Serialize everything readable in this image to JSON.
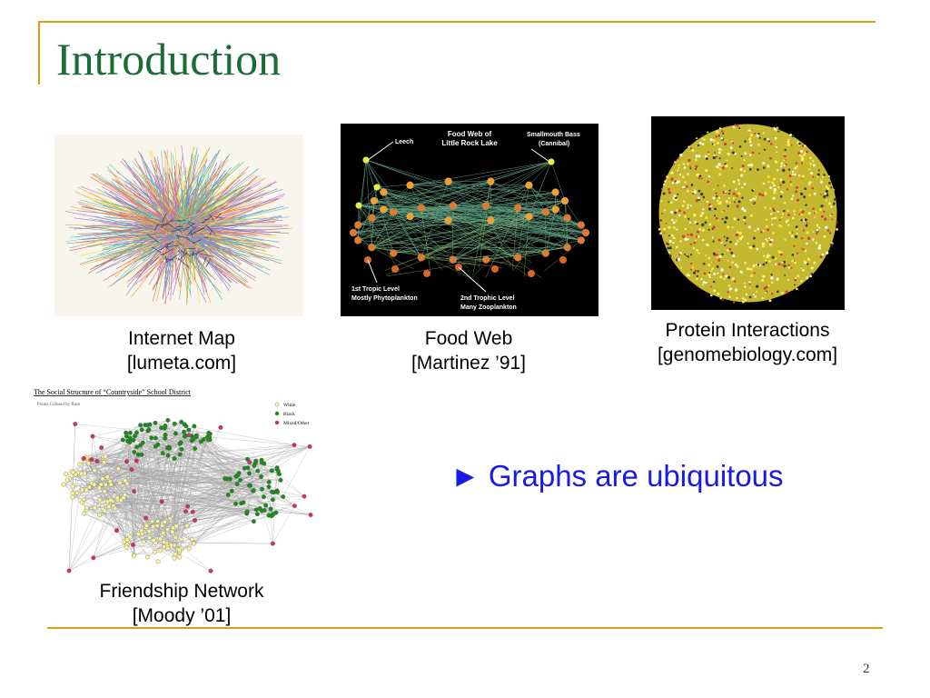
{
  "slide": {
    "title": "Introduction",
    "slide_number": "2",
    "bullet": "► Graphs are ubiquitous",
    "accent_color": "#d4a017",
    "title_color": "#1e6b3a",
    "bullet_color": "#1a1ae6"
  },
  "figures": {
    "internet_map": {
      "caption_line1": "Internet Map",
      "caption_line2": "[lumeta.com]"
    },
    "food_web": {
      "caption_line1": "Food Web",
      "caption_line2": "[Martinez ’91]",
      "labels": {
        "title_line1": "Food Web of",
        "title_line2": "Little Rock Lake",
        "leech": "Leech",
        "bass_line1": "Smallmouth Bass",
        "bass_line2": "(Cannibal)",
        "level1_line1": "1st Tropic Level",
        "level1_line2": "Mostly Phytoplankton",
        "level2_line1": "2nd Trophic Level",
        "level2_line2": "Many Zooplankton"
      }
    },
    "protein": {
      "caption_line1": "Protein Interactions",
      "caption_line2": "[genomebiology.com]"
    },
    "friendship": {
      "caption_line1": "Friendship Network",
      "caption_line2": "[Moody ’01]",
      "labels": {
        "title": "The Social Structure of “Countryside” School District",
        "subtitle": "Points Colored by Race",
        "legend_white": "White",
        "legend_black": "Black",
        "legend_mixed": "Mixed/Other"
      }
    }
  }
}
